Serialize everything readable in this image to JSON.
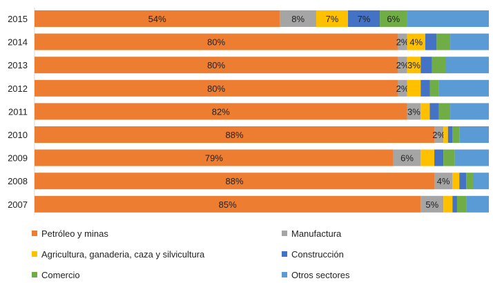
{
  "chart_data": {
    "type": "bar",
    "orientation": "horizontal",
    "stacked": "100%",
    "title": "",
    "xlabel": "",
    "ylabel": "",
    "categories": [
      "2015",
      "2014",
      "2013",
      "2012",
      "2011",
      "2010",
      "2009",
      "2008",
      "2007"
    ],
    "series": [
      {
        "name": "Petróleo y minas",
        "color": "#ED7D31",
        "values": [
          54,
          80,
          80,
          80,
          82,
          88,
          79,
          88,
          85
        ],
        "labels": [
          "54%",
          "80%",
          "80%",
          "80%",
          "82%",
          "88%",
          "79%",
          "88%",
          "85%"
        ]
      },
      {
        "name": "Manufactura",
        "color": "#A5A5A5",
        "values": [
          8,
          2,
          2,
          2,
          3,
          2,
          6,
          4,
          5
        ],
        "labels": [
          "8%",
          "2%",
          "2%",
          "2%",
          "3%",
          "2%",
          "6%",
          "4%",
          "5%"
        ]
      },
      {
        "name": "Agricultura, ganaderia, caza y silvicultura",
        "color": "#FFC000",
        "values": [
          7,
          4,
          3,
          3,
          2,
          1,
          3,
          1.5,
          2
        ],
        "labels": [
          "7%",
          "4%",
          "3%",
          "",
          "",
          "",
          "",
          "",
          ""
        ]
      },
      {
        "name": "Construcción",
        "color": "#4472C4",
        "values": [
          7,
          2.5,
          2.5,
          2,
          2,
          1,
          2,
          1.5,
          1
        ],
        "labels": [
          "7%",
          "",
          "",
          "",
          "",
          "",
          "",
          "",
          ""
        ]
      },
      {
        "name": "Comercio",
        "color": "#70AD47",
        "values": [
          6,
          3,
          3,
          2,
          2.5,
          1.5,
          2.5,
          1.5,
          2
        ],
        "labels": [
          "6%",
          "",
          "",
          "",
          "",
          "",
          "",
          "",
          ""
        ]
      },
      {
        "name": "Otros sectores",
        "color": "#5B9BD5",
        "values": [
          18,
          8.5,
          9.5,
          11,
          8.5,
          6.5,
          7.5,
          3.5,
          5
        ],
        "labels": [
          "",
          "",
          "",
          "",
          "",
          "",
          "",
          "",
          ""
        ]
      }
    ],
    "legend_position": "bottom",
    "grid": false
  }
}
